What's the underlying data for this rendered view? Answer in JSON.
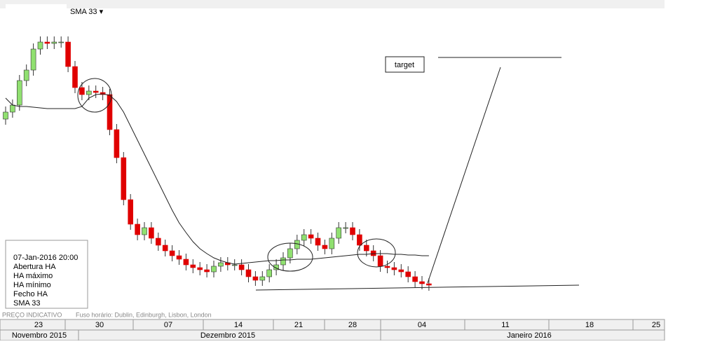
{
  "toolbar": {
    "indicator": "SMA 33 ▾"
  },
  "chart_data": {
    "type": "candlestick",
    "ylim": [
      0,
      455
    ],
    "open": [
      285,
      295,
      305,
      340,
      355,
      385,
      395,
      393,
      395,
      395,
      360,
      330,
      320,
      325,
      323,
      320,
      270,
      230,
      170,
      135,
      120,
      130,
      115,
      105,
      97,
      90,
      85,
      77,
      73,
      70,
      67,
      75,
      80,
      77,
      77,
      70,
      60,
      55,
      60,
      70,
      77,
      87,
      100,
      112,
      120,
      115,
      105,
      100,
      115,
      130,
      130,
      120,
      105,
      97,
      90,
      75,
      73,
      70,
      67,
      60,
      53,
      50
    ],
    "high": [
      303,
      313,
      348,
      363,
      393,
      403,
      403,
      403,
      403,
      403,
      368,
      338,
      333,
      333,
      331,
      328,
      278,
      238,
      178,
      143,
      138,
      138,
      123,
      113,
      105,
      98,
      93,
      85,
      81,
      78,
      83,
      88,
      88,
      85,
      85,
      78,
      68,
      68,
      78,
      85,
      95,
      108,
      120,
      128,
      128,
      123,
      113,
      123,
      138,
      138,
      138,
      128,
      113,
      105,
      98,
      83,
      81,
      78,
      75,
      68,
      61,
      58
    ],
    "low": [
      277,
      287,
      297,
      332,
      347,
      377,
      385,
      385,
      387,
      352,
      322,
      312,
      312,
      315,
      312,
      262,
      222,
      162,
      127,
      112,
      112,
      107,
      97,
      89,
      82,
      77,
      69,
      65,
      62,
      59,
      59,
      67,
      69,
      69,
      62,
      52,
      47,
      47,
      52,
      62,
      69,
      79,
      92,
      104,
      107,
      97,
      92,
      92,
      107,
      122,
      112,
      97,
      89,
      82,
      67,
      65,
      62,
      59,
      52,
      45,
      42,
      40
    ],
    "close": [
      295,
      305,
      340,
      355,
      385,
      395,
      393,
      395,
      395,
      360,
      330,
      320,
      325,
      323,
      320,
      270,
      230,
      170,
      135,
      120,
      130,
      115,
      105,
      97,
      90,
      85,
      77,
      73,
      70,
      67,
      75,
      80,
      77,
      77,
      70,
      60,
      55,
      60,
      70,
      77,
      87,
      100,
      112,
      120,
      115,
      105,
      100,
      115,
      130,
      130,
      120,
      105,
      97,
      90,
      75,
      73,
      70,
      67,
      60,
      53,
      50,
      48
    ],
    "colors": {
      "up": "#90e070",
      "down": "#e00000"
    },
    "series": [
      {
        "name": "SMA 33",
        "color": "#222222",
        "values": [
          315,
          305,
          303,
          303,
          302,
          301,
          300,
          300,
          300,
          300,
          300,
          303,
          315,
          320,
          321,
          319,
          310,
          295,
          275,
          255,
          235,
          215,
          195,
          175,
          155,
          137,
          123,
          110,
          100,
          93,
          87,
          83,
          80,
          78,
          79,
          80,
          81,
          82,
          83,
          83,
          84,
          84,
          85,
          85,
          85,
          86,
          87,
          88,
          89,
          90,
          91,
          92,
          92,
          93,
          93,
          93,
          92,
          92,
          91,
          91,
          90,
          90
        ]
      }
    ],
    "annotation": "target",
    "info": [
      "07-Jan-2016 20:00",
      "Abertura HA",
      "HA máximo",
      "HA mínimo",
      "Fecho HA",
      "SMA 33"
    ],
    "status": "PREÇO INDICATIVO",
    "timezone": "Fuso horário: Dublin, Edinburgh, Lisbon, London",
    "days": [
      "23",
      "30",
      "07",
      "14",
      "21",
      "28",
      "04",
      "11",
      "18",
      "25"
    ],
    "months": [
      "Novembro 2015",
      "Dezembro 2015",
      "Janeiro 2016"
    ]
  }
}
